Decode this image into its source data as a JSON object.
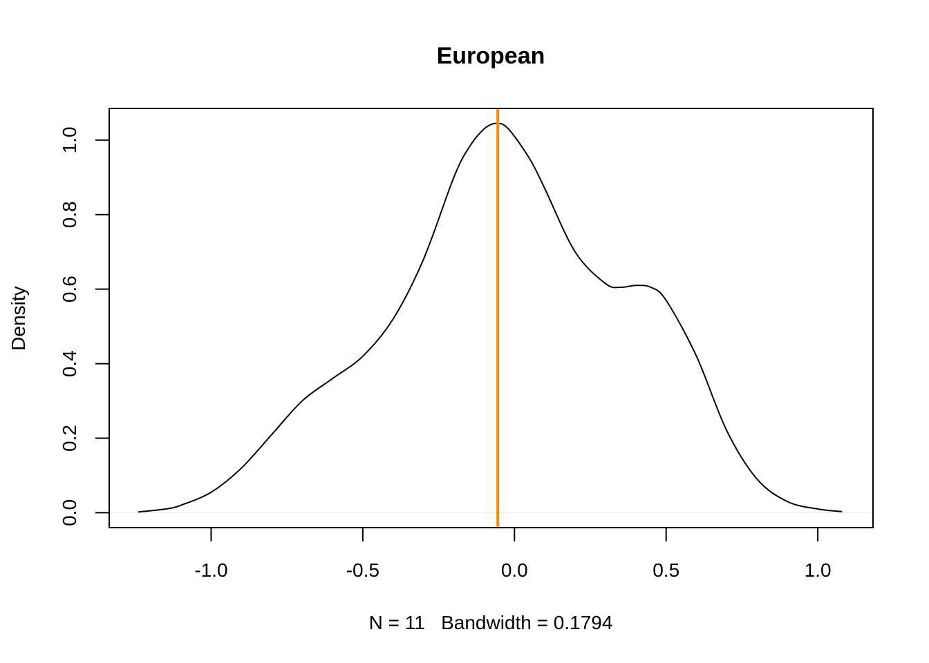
{
  "chart_data": {
    "type": "line",
    "title": "European",
    "xlabel": "N = 11   Bandwidth = 0.1794",
    "ylabel": "Density",
    "xlim": [
      -1.336,
      1.182
    ],
    "ylim": [
      -0.04,
      1.085
    ],
    "x_ticks": [
      -1.0,
      -0.5,
      0.0,
      0.5,
      1.0
    ],
    "x_tick_labels": [
      "-1.0",
      "-0.5",
      "0.0",
      "0.5",
      "1.0"
    ],
    "y_ticks": [
      0.0,
      0.2,
      0.4,
      0.6,
      0.8,
      1.0
    ],
    "y_tick_labels": [
      "0.0",
      "0.2",
      "0.4",
      "0.6",
      "0.8",
      "1.0"
    ],
    "grid": false,
    "series": [
      {
        "color": "#000000",
        "x": [
          -1.24,
          -1.15,
          -1.1,
          -1.0,
          -0.9,
          -0.8,
          -0.7,
          -0.6,
          -0.5,
          -0.4,
          -0.3,
          -0.2,
          -0.15,
          -0.1,
          -0.06,
          -0.02,
          0.05,
          0.1,
          0.2,
          0.3,
          0.35,
          0.4,
          0.45,
          0.5,
          0.6,
          0.7,
          0.8,
          0.9,
          1.0,
          1.08
        ],
        "y": [
          0.002,
          0.01,
          0.02,
          0.055,
          0.12,
          0.21,
          0.3,
          0.36,
          0.42,
          0.52,
          0.68,
          0.9,
          0.98,
          1.03,
          1.045,
          1.03,
          0.95,
          0.87,
          0.7,
          0.615,
          0.605,
          0.61,
          0.605,
          0.57,
          0.42,
          0.22,
          0.09,
          0.03,
          0.01,
          0.003
        ]
      }
    ],
    "vertical_line": {
      "x": -0.055,
      "color": "#FF8C00"
    }
  }
}
